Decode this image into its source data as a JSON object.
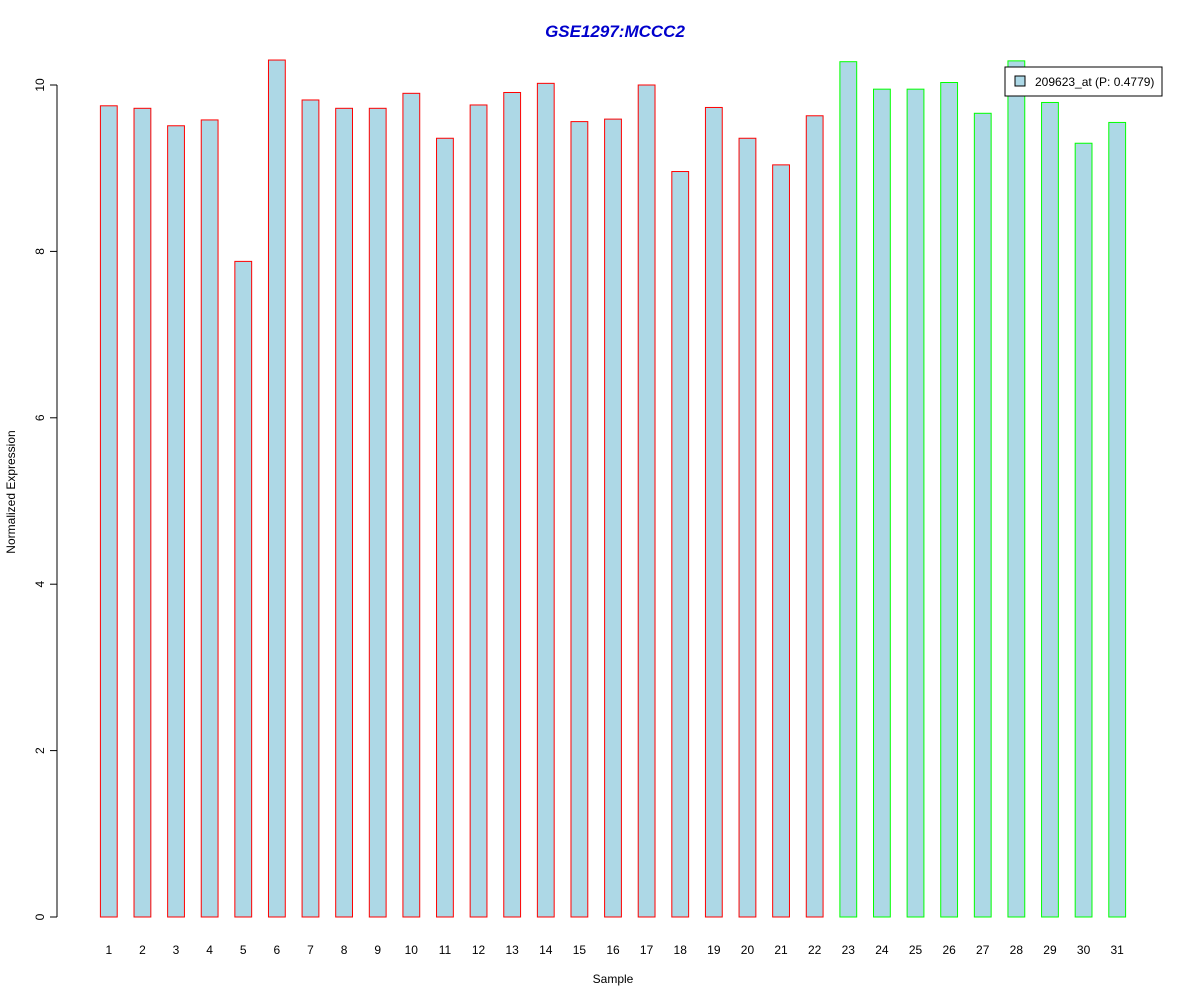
{
  "chart_data": {
    "type": "bar",
    "title": "GSE1297:MCCC2",
    "xlabel": "Sample",
    "ylabel": "Normalized Expression",
    "ylim": [
      0,
      10
    ],
    "yticks": [
      0,
      2,
      4,
      6,
      8,
      10
    ],
    "categories": [
      "1",
      "2",
      "3",
      "4",
      "5",
      "6",
      "7",
      "8",
      "9",
      "10",
      "11",
      "12",
      "13",
      "14",
      "15",
      "16",
      "17",
      "18",
      "19",
      "20",
      "21",
      "22",
      "23",
      "24",
      "25",
      "26",
      "27",
      "28",
      "29",
      "30",
      "31"
    ],
    "values": [
      9.75,
      9.72,
      9.51,
      9.58,
      7.88,
      10.3,
      9.82,
      9.72,
      9.72,
      9.9,
      9.36,
      9.76,
      9.91,
      10.02,
      9.56,
      9.59,
      10.0,
      8.96,
      9.73,
      9.36,
      9.04,
      9.63,
      10.28,
      9.95,
      9.95,
      10.03,
      9.66,
      10.29,
      9.79,
      9.3,
      9.55
    ],
    "groups": [
      1,
      1,
      1,
      1,
      1,
      1,
      1,
      1,
      1,
      1,
      1,
      1,
      1,
      1,
      1,
      1,
      1,
      1,
      1,
      1,
      1,
      1,
      2,
      2,
      2,
      2,
      2,
      2,
      2,
      2,
      2
    ],
    "colors": {
      "fill": "#add8e6",
      "group_1_border": "#ff0000",
      "group_2_border": "#00ff00",
      "title": "#0000cc"
    },
    "legend": {
      "label": "209623_at (P: 0.4779)",
      "position": "top-right"
    },
    "grid": false
  }
}
